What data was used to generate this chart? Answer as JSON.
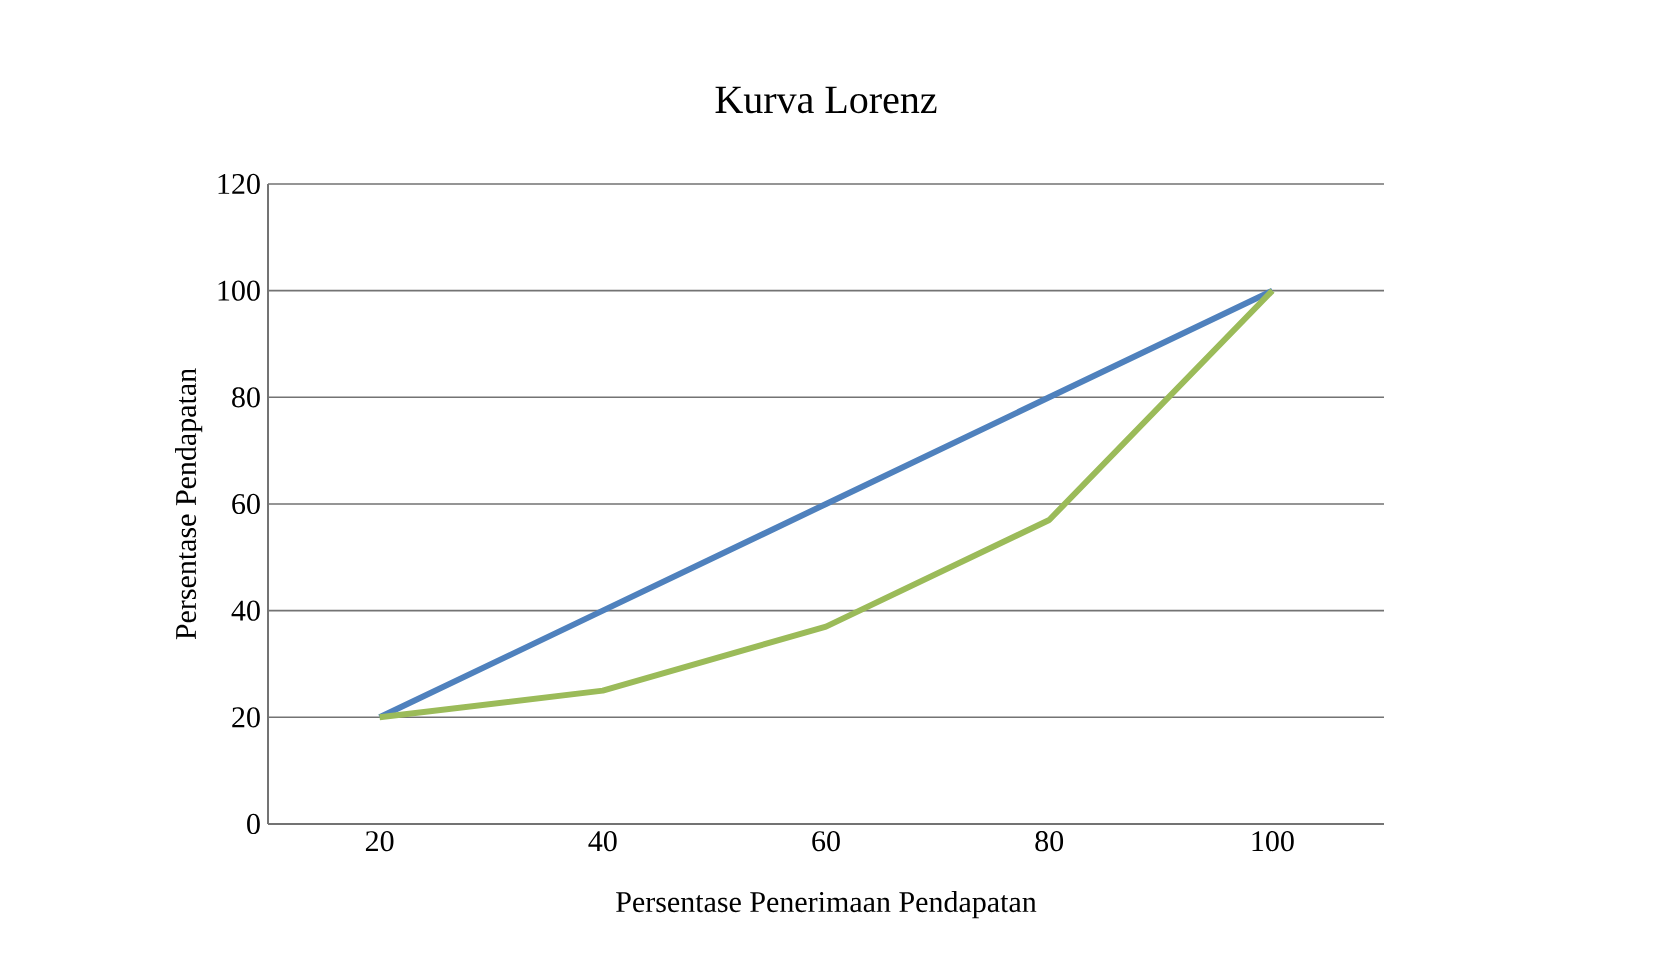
{
  "chart_data": {
    "type": "line",
    "title": "Kurva Lorenz",
    "xlabel": "Persentase Penerimaan Pendapatan",
    "ylabel": "Persentase Pendapatan",
    "categories": [
      "20",
      "40",
      "60",
      "80",
      "100"
    ],
    "series": [
      {
        "color": "#4f81bd",
        "values": [
          20,
          40,
          60,
          80,
          100
        ]
      },
      {
        "color": "#9bbb59",
        "values": [
          20,
          25,
          37,
          57,
          100
        ]
      }
    ],
    "ylim": [
      0,
      120
    ],
    "yticks": [
      0,
      20,
      40,
      60,
      80,
      100,
      120
    ],
    "grid": "y"
  }
}
